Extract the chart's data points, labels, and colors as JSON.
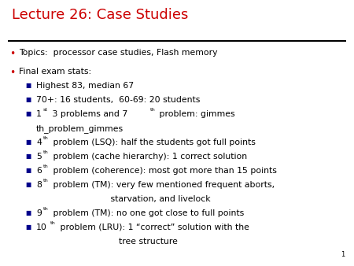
{
  "title": "Lecture 26: Case Studies",
  "title_color": "#cc0000",
  "title_fontsize": 13,
  "background_color": "#ffffff",
  "line_color": "#000000",
  "text_color": "#000000",
  "bullet_color": "#cc0000",
  "sub_bullet_color": "#00008b",
  "page_number": "1",
  "font_size": 7.8,
  "bullet_fontsize": 7.8,
  "sub_bullet_fontsize": 5.5,
  "bullet1": "Topics:  processor case studies, Flash memory",
  "bullet2_header": "Final exam stats:",
  "second_lines": {
    "6": "                           starvation, and livelock",
    "8": "                              tree structure"
  }
}
